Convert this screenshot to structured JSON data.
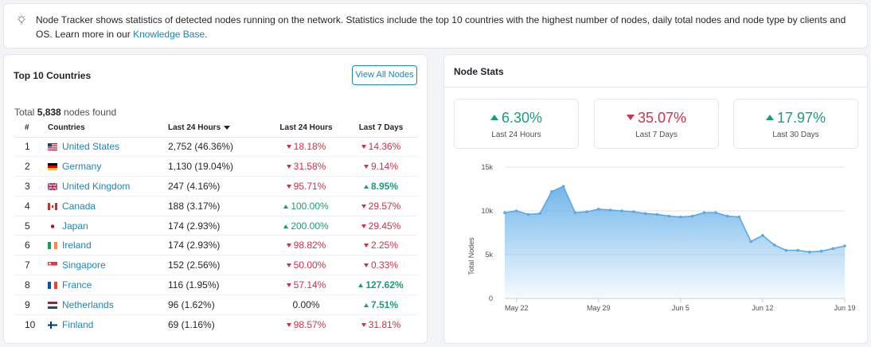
{
  "banner": {
    "text": "Node Tracker shows statistics of detected nodes running on the network. Statistics include the top 10 countries with the highest number of nodes, daily total nodes and node type by clients and OS. Learn more in our ",
    "link": "Knowledge Base",
    "suffix": "."
  },
  "top_countries": {
    "title": "Top 10 Countries",
    "view_all_label": "View All Nodes",
    "total_prefix": "Total ",
    "total_count": "5,838",
    "total_suffix": " nodes found",
    "headers": [
      "#",
      "Countries",
      "Last 24 Hours",
      "Last 24 Hours",
      "Last 7 Days"
    ],
    "rows": [
      {
        "rank": "1",
        "country": "United States",
        "flag": "us",
        "count": "2,752 (46.36%)",
        "d24": "18.18%",
        "d24_dir": "down",
        "d7": "14.36%",
        "d7_dir": "down"
      },
      {
        "rank": "2",
        "country": "Germany",
        "flag": "de",
        "count": "1,130 (19.04%)",
        "d24": "31.58%",
        "d24_dir": "down",
        "d7": "9.14%",
        "d7_dir": "down"
      },
      {
        "rank": "3",
        "country": "United Kingdom",
        "flag": "gb",
        "count": "247 (4.16%)",
        "d24": "95.71%",
        "d24_dir": "down",
        "d7": "8.95%",
        "d7_dir": "up"
      },
      {
        "rank": "4",
        "country": "Canada",
        "flag": "ca",
        "count": "188 (3.17%)",
        "d24": "100.00%",
        "d24_dir": "up",
        "d7": "29.57%",
        "d7_dir": "down"
      },
      {
        "rank": "5",
        "country": "Japan",
        "flag": "jp",
        "count": "174 (2.93%)",
        "d24": "200.00%",
        "d24_dir": "up",
        "d7": "29.45%",
        "d7_dir": "down"
      },
      {
        "rank": "6",
        "country": "Ireland",
        "flag": "ie",
        "count": "174 (2.93%)",
        "d24": "98.82%",
        "d24_dir": "down",
        "d7": "2.25%",
        "d7_dir": "down"
      },
      {
        "rank": "7",
        "country": "Singapore",
        "flag": "sg",
        "count": "152 (2.56%)",
        "d24": "50.00%",
        "d24_dir": "down",
        "d7": "0.33%",
        "d7_dir": "down"
      },
      {
        "rank": "8",
        "country": "France",
        "flag": "fr",
        "count": "116 (1.95%)",
        "d24": "57.14%",
        "d24_dir": "down",
        "d7": "127.62%",
        "d7_dir": "up"
      },
      {
        "rank": "9",
        "country": "Netherlands",
        "flag": "nl",
        "count": "96 (1.62%)",
        "d24": "0.00%",
        "d24_dir": "neutral",
        "d7": "7.51%",
        "d7_dir": "up"
      },
      {
        "rank": "10",
        "country": "Finland",
        "flag": "fi",
        "count": "69 (1.16%)",
        "d24": "98.57%",
        "d24_dir": "down",
        "d7": "31.81%",
        "d7_dir": "down"
      }
    ]
  },
  "node_stats": {
    "title": "Node Stats",
    "stats": [
      {
        "value": "6.30%",
        "dir": "up",
        "label": "Last 24 Hours"
      },
      {
        "value": "35.07%",
        "dir": "down",
        "label": "Last 7 Days"
      },
      {
        "value": "17.97%",
        "dir": "up",
        "label": "Last 30 Days"
      }
    ]
  },
  "colors": {
    "accent": "#1b86bb",
    "up": "#1a9c7a",
    "down": "#d0304a",
    "area": "#5aa9e6"
  },
  "chart_data": {
    "type": "area",
    "ylabel": "Total Nodes",
    "ylim": [
      0,
      15000
    ],
    "y_ticks": [
      0,
      5000,
      10000,
      15000
    ],
    "y_tick_labels": [
      "0",
      "5k",
      "10k",
      "15k"
    ],
    "x_tick_labels": [
      "May 22",
      "May 29",
      "Jun 5",
      "Jun 12",
      "Jun 19"
    ],
    "x_tick_days": [
      1,
      8,
      15,
      22,
      29
    ],
    "series": [
      {
        "name": "Total Nodes",
        "day": [
          0,
          1,
          2,
          3,
          4,
          5,
          6,
          7,
          8,
          9,
          10,
          11,
          12,
          13,
          14,
          15,
          16,
          17,
          18,
          19,
          20,
          21,
          22,
          23,
          24,
          25,
          26,
          27,
          28,
          29
        ],
        "values": [
          9800,
          10000,
          9600,
          9700,
          12200,
          12800,
          9800,
          9900,
          10200,
          10100,
          10000,
          9900,
          9700,
          9600,
          9400,
          9300,
          9400,
          9800,
          9800,
          9400,
          9300,
          6500,
          7200,
          6100,
          5500,
          5500,
          5300,
          5400,
          5700,
          6000
        ]
      }
    ]
  }
}
